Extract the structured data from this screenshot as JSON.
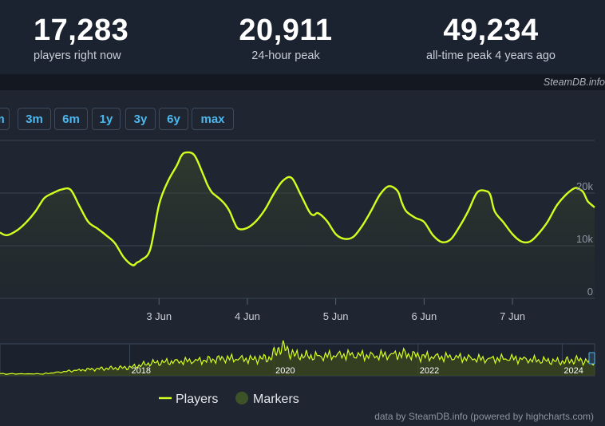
{
  "stats": {
    "now": {
      "value": "17,283",
      "label": "players right now"
    },
    "peak24": {
      "value": "20,911",
      "label": "24-hour peak"
    },
    "alltime": {
      "value": "49,234",
      "label": "all-time peak 4 years ago"
    }
  },
  "watermark": "SteamDB.info",
  "range_buttons": [
    "m",
    "3m",
    "6m",
    "1y",
    "3y",
    "6y",
    "max"
  ],
  "footer": "data by SteamDB.info (powered by highcharts.com)",
  "colors": {
    "line": "#d3ff1f",
    "marker": "#3e5228"
  },
  "chart_data": {
    "type": "line",
    "x_unit": "days in June",
    "xlim": [
      1.2,
      7.93
    ],
    "ylim": [
      0,
      30000
    ],
    "y_ticks": [
      {
        "value": 0,
        "label": "0"
      },
      {
        "value": 10000,
        "label": "10k"
      },
      {
        "value": 20000,
        "label": "20k"
      }
    ],
    "x_ticks": [
      {
        "value": 3,
        "label": "3 Jun"
      },
      {
        "value": 4,
        "label": "4 Jun"
      },
      {
        "value": 5,
        "label": "5 Jun"
      },
      {
        "value": 6,
        "label": "6 Jun"
      },
      {
        "value": 7,
        "label": "7 Jun"
      }
    ],
    "grid": true,
    "legend": {
      "position": "bottom-center",
      "items": [
        {
          "label": "Players",
          "kind": "line"
        },
        {
          "label": "Markers",
          "kind": "marker"
        }
      ]
    },
    "series": [
      {
        "name": "Players",
        "x": [
          1.2,
          1.28,
          1.4,
          1.5,
          1.6,
          1.7,
          1.8,
          1.9,
          2.0,
          2.1,
          2.2,
          2.3,
          2.4,
          2.5,
          2.6,
          2.7,
          2.75,
          2.8,
          2.9,
          3.0,
          3.1,
          3.2,
          3.25,
          3.3,
          3.4,
          3.5,
          3.55,
          3.6,
          3.65,
          3.7,
          3.75,
          3.8,
          3.85,
          3.9,
          4.0,
          4.1,
          4.2,
          4.3,
          4.4,
          4.5,
          4.6,
          4.7,
          4.75,
          4.8,
          4.9,
          5.0,
          5.1,
          5.2,
          5.3,
          5.4,
          5.5,
          5.6,
          5.7,
          5.75,
          5.8,
          5.9,
          6.0,
          6.1,
          6.2,
          6.3,
          6.4,
          6.5,
          6.6,
          6.7,
          6.75,
          6.8,
          6.9,
          7.0,
          7.1,
          7.2,
          7.3,
          7.4,
          7.5,
          7.6,
          7.7,
          7.75,
          7.8,
          7.85,
          7.9,
          7.93
        ],
        "y": [
          12500,
          12000,
          13000,
          14500,
          16500,
          19000,
          20000,
          20700,
          20600,
          17500,
          14500,
          13300,
          12000,
          10500,
          7800,
          6300,
          6800,
          7300,
          9300,
          17800,
          22200,
          25200,
          27000,
          27700,
          27200,
          23500,
          21500,
          20100,
          19400,
          18700,
          17800,
          16500,
          14500,
          13200,
          13400,
          14700,
          16900,
          19900,
          22300,
          22900,
          19800,
          16500,
          15800,
          16200,
          14700,
          12200,
          11300,
          11700,
          13800,
          16600,
          19700,
          21300,
          20400,
          18100,
          16500,
          15300,
          14500,
          12000,
          10700,
          11200,
          13600,
          16600,
          20100,
          20400,
          19600,
          16500,
          14400,
          12200,
          10800,
          10800,
          12400,
          14600,
          17600,
          19600,
          20900,
          20800,
          20200,
          18500,
          17700,
          17283
        ]
      }
    ]
  },
  "navigator": {
    "year_labels": [
      "2018",
      "2020",
      "2022",
      "2024"
    ],
    "year_positions": [
      2018,
      2020,
      2022,
      2024
    ],
    "xlim": [
      2016.2,
      2024.45
    ],
    "ymax": 50000,
    "x": [
      2016.2,
      2016.8,
      2017.3,
      2017.6,
      2017.8,
      2018.0,
      2018.3,
      2018.6,
      2019.0,
      2019.3,
      2019.7,
      2019.95,
      2020.1,
      2020.3,
      2020.6,
      2021.0,
      2021.4,
      2021.8,
      2022.1,
      2022.5,
      2022.9,
      2023.3,
      2023.7,
      2024.0,
      2024.2,
      2024.45
    ],
    "y": [
      3000,
      3000,
      9000,
      11000,
      12000,
      13000,
      20000,
      22000,
      24000,
      27000,
      26000,
      28000,
      46000,
      32000,
      30000,
      33000,
      31000,
      34000,
      30000,
      29000,
      26000,
      27000,
      24000,
      22000,
      25000,
      21000
    ]
  }
}
